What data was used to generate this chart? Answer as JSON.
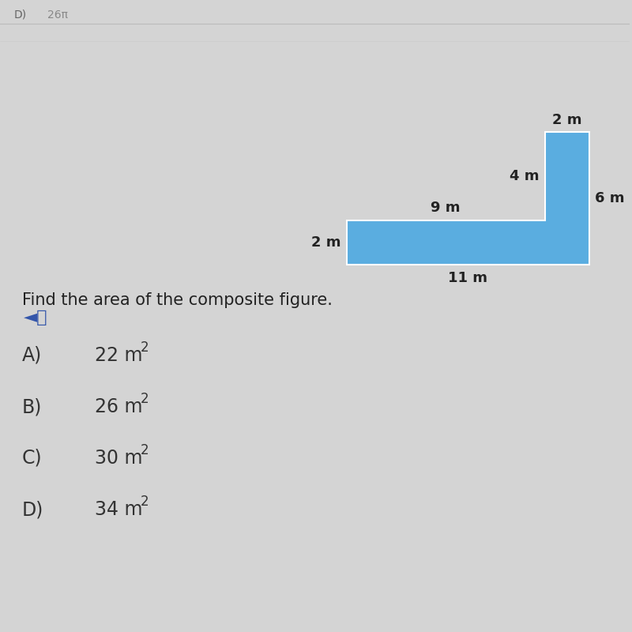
{
  "bg_color": "#d4d4d4",
  "shape_color": "#5aade0",
  "question_text": "Find the area of the composite figure.",
  "choices": [
    {
      "label": "A)",
      "text": "22 m",
      "superscript": "2"
    },
    {
      "label": "B)",
      "text": "26 m",
      "superscript": "2"
    },
    {
      "label": "C)",
      "text": "30 m",
      "superscript": "2"
    },
    {
      "label": "D)",
      "text": "34 m",
      "superscript": "2"
    }
  ],
  "dim_labels": {
    "top": "2 m",
    "left_inner": "4 m",
    "middle": "9 m",
    "left_outer": "2 m",
    "bottom": "11 m",
    "right": "6 m"
  },
  "header_line1": "D)",
  "header_line2": "26π",
  "label_fontsize": 13,
  "choice_fontsize": 17,
  "choice_label_fontsize": 17,
  "question_fontsize": 15
}
